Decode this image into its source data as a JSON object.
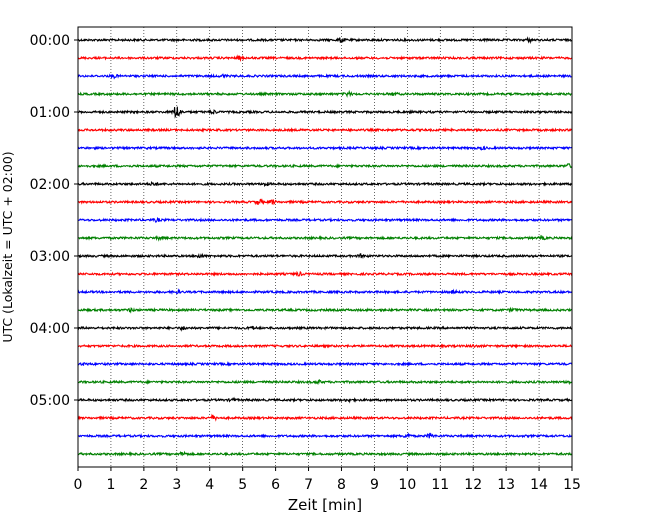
{
  "chart_data": {
    "type": "line",
    "title": "",
    "xlabel": "Zeit  [min]",
    "ylabel": "UTC (Lokalzeit = UTC + 02:00)",
    "xlim": [
      0,
      15
    ],
    "x_ticks": [
      "0",
      "1",
      "2",
      "3",
      "4",
      "5",
      "6",
      "7",
      "8",
      "9",
      "10",
      "11",
      "12",
      "13",
      "14",
      "15"
    ],
    "y_tick_labels": [
      "00:00",
      "01:00",
      "02:00",
      "03:00",
      "04:00",
      "05:00"
    ],
    "grid": "vertical dotted at each minute",
    "trace_interval_min": 15,
    "traces_per_hour": 4,
    "trace_colors": [
      "#000000",
      "#ff0000",
      "#0000ff",
      "#008000"
    ],
    "series": [
      {
        "start": "00:00",
        "color": "#000000",
        "events": [
          [
            8.0,
            2.0
          ],
          [
            13.7,
            1.6
          ]
        ]
      },
      {
        "start": "00:15",
        "color": "#ff0000",
        "events": [
          [
            4.9,
            1.6
          ]
        ]
      },
      {
        "start": "00:30",
        "color": "#0000ff",
        "events": [
          [
            1.1,
            1.6
          ],
          [
            4.4,
            1.5
          ]
        ]
      },
      {
        "start": "00:45",
        "color": "#008000",
        "events": [
          [
            8.2,
            1.8
          ],
          [
            9.6,
            1.6
          ]
        ]
      },
      {
        "start": "01:00",
        "color": "#000000",
        "events": [
          [
            3.0,
            4.5
          ],
          [
            4.1,
            1.8
          ]
        ]
      },
      {
        "start": "01:15",
        "color": "#ff0000",
        "events": []
      },
      {
        "start": "01:30",
        "color": "#0000ff",
        "events": [
          [
            12.3,
            1.5
          ]
        ]
      },
      {
        "start": "01:45",
        "color": "#008000",
        "events": [
          [
            14.9,
            1.7
          ]
        ]
      },
      {
        "start": "02:00",
        "color": "#000000",
        "events": [
          [
            2.3,
            1.8
          ],
          [
            5.7,
            1.6
          ]
        ]
      },
      {
        "start": "02:15",
        "color": "#ff0000",
        "events": [
          [
            5.5,
            2.2
          ],
          [
            5.9,
            1.8
          ]
        ]
      },
      {
        "start": "02:30",
        "color": "#0000ff",
        "events": [
          [
            2.4,
            1.6
          ]
        ]
      },
      {
        "start": "02:45",
        "color": "#008000",
        "events": [
          [
            2.5,
            1.5
          ],
          [
            14.1,
            1.5
          ]
        ]
      },
      {
        "start": "03:00",
        "color": "#000000",
        "events": [
          [
            3.7,
            1.7
          ],
          [
            8.6,
            1.6
          ]
        ]
      },
      {
        "start": "03:15",
        "color": "#ff0000",
        "events": [
          [
            6.7,
            1.7
          ]
        ]
      },
      {
        "start": "03:30",
        "color": "#0000ff",
        "events": [
          [
            3.0,
            1.5
          ],
          [
            11.4,
            1.5
          ]
        ]
      },
      {
        "start": "03:45",
        "color": "#008000",
        "events": [
          [
            1.6,
            1.6
          ],
          [
            13.2,
            1.5
          ]
        ]
      },
      {
        "start": "04:00",
        "color": "#000000",
        "events": [
          [
            3.2,
            1.6
          ],
          [
            5.3,
            1.5
          ]
        ]
      },
      {
        "start": "04:15",
        "color": "#ff0000",
        "events": [
          [
            12.0,
            1.4
          ]
        ]
      },
      {
        "start": "04:30",
        "color": "#0000ff",
        "events": [
          [
            0.2,
            1.4
          ]
        ]
      },
      {
        "start": "04:45",
        "color": "#008000",
        "events": [
          [
            7.3,
            1.5
          ],
          [
            14.9,
            1.5
          ]
        ]
      },
      {
        "start": "05:00",
        "color": "#000000",
        "events": [
          [
            4.7,
            1.6
          ],
          [
            8.2,
            1.5
          ]
        ]
      },
      {
        "start": "05:15",
        "color": "#ff0000",
        "events": [
          [
            4.1,
            2.0
          ]
        ]
      },
      {
        "start": "05:30",
        "color": "#0000ff",
        "events": [
          [
            10.0,
            1.8
          ],
          [
            10.7,
            2.0
          ]
        ]
      },
      {
        "start": "05:45",
        "color": "#008000",
        "events": [
          [
            3.2,
            1.8
          ]
        ]
      }
    ]
  }
}
